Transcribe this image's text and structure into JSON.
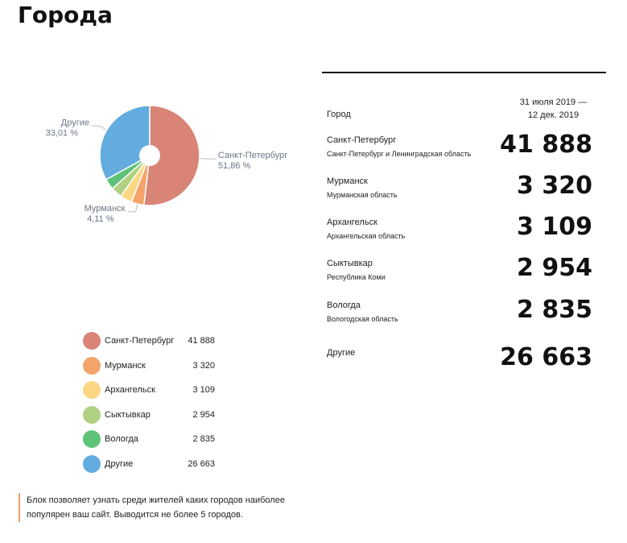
{
  "page": {
    "title": "Города"
  },
  "chart_data": {
    "type": "pie",
    "categories": [
      "Санкт-Петербург",
      "Мурманск",
      "Архангельск",
      "Сыктывкар",
      "Вологда",
      "Другие"
    ],
    "values": [
      41888,
      3320,
      3109,
      2954,
      2835,
      26663
    ],
    "colors": [
      "#d98477",
      "#f4a46a",
      "#fbd783",
      "#b1d182",
      "#5ec379",
      "#62acdf"
    ],
    "slice_labels": [
      {
        "name": "Санкт-Петербург",
        "percent": "51,86 %"
      },
      {
        "name": "Мурманск",
        "percent": "4,11 %"
      },
      {
        "name": "Другие",
        "percent": "33,01 %"
      }
    ]
  },
  "legend": {
    "items": [
      {
        "label": "Санкт-Петербург",
        "value": "41 888",
        "color": "#d98477"
      },
      {
        "label": "Мурманск",
        "value": "3 320",
        "color": "#f4a46a"
      },
      {
        "label": "Архангельск",
        "value": "3 109",
        "color": "#fbd783"
      },
      {
        "label": "Сыктывкар",
        "value": "2 954",
        "color": "#b1d182"
      },
      {
        "label": "Вологда",
        "value": "2 835",
        "color": "#5ec379"
      },
      {
        "label": "Другие",
        "value": "26 663",
        "color": "#62acdf"
      }
    ]
  },
  "note": {
    "line1": "Блок позволяет узнать среди жителей каких городов наиболее",
    "line2": "популярен ваш сайт. Выводится не более 5 городов."
  },
  "table": {
    "header_city": "Город",
    "header_period_line1": "31 июля 2019 —",
    "header_period_line2": "12 дек. 2019",
    "rows": [
      {
        "city": "Санкт-Петербург",
        "region": "Санкт-Петербург и Ленинградская область",
        "value": "41 888"
      },
      {
        "city": "Мурманск",
        "region": "Мурманская область",
        "value": "3 320"
      },
      {
        "city": "Архангельск",
        "region": "Архангельская область",
        "value": "3 109"
      },
      {
        "city": "Сыктывкар",
        "region": "Республика Коми",
        "value": "2 954"
      },
      {
        "city": "Вологда",
        "region": "Вологодская область",
        "value": "2 835"
      },
      {
        "city": "Другие",
        "region": "",
        "value": "26 663"
      }
    ]
  }
}
